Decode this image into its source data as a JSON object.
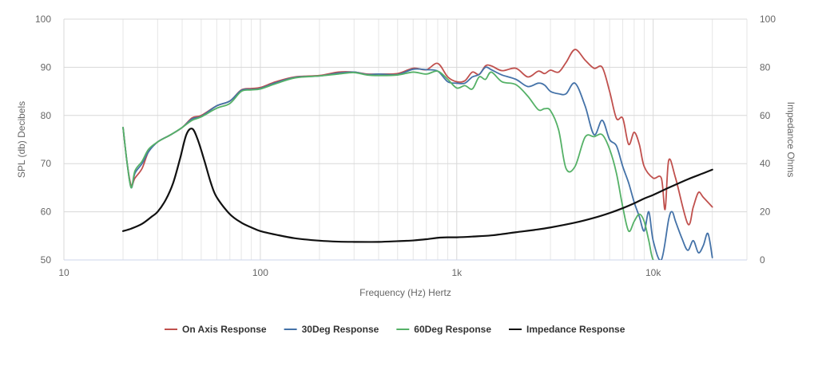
{
  "chart_data": {
    "type": "line",
    "title": "",
    "xlabel": "Frequency (Hz) Hertz",
    "ylabel_left": "SPL (db) Decibels",
    "ylabel_right": "Impedance Ohms",
    "x_scale": "log",
    "xlim": [
      10,
      30000
    ],
    "ylim_left": [
      50,
      100
    ],
    "ylim_right": [
      0,
      100
    ],
    "x_ticks": [
      {
        "value": 10,
        "label": "10"
      },
      {
        "value": 100,
        "label": "100"
      },
      {
        "value": 1000,
        "label": "1k"
      },
      {
        "value": 10000,
        "label": "10k"
      }
    ],
    "y_ticks_left": [
      50,
      60,
      70,
      80,
      90,
      100
    ],
    "y_ticks_right": [
      0,
      20,
      40,
      60,
      80,
      100
    ],
    "grid": "vertical log minor + horizontal major",
    "legend_position": "bottom-center",
    "series": [
      {
        "name": "On Axis Response",
        "color": "#c0504d",
        "axis": "left",
        "points": [
          [
            20,
            77.5
          ],
          [
            21,
            70
          ],
          [
            22,
            65.5
          ],
          [
            23,
            67
          ],
          [
            25,
            69
          ],
          [
            27,
            72.5
          ],
          [
            30,
            74.5
          ],
          [
            35,
            76
          ],
          [
            40,
            77.5
          ],
          [
            45,
            79.5
          ],
          [
            50,
            80
          ],
          [
            60,
            82
          ],
          [
            70,
            83
          ],
          [
            80,
            85.3
          ],
          [
            90,
            85.6
          ],
          [
            100,
            85.8
          ],
          [
            120,
            87
          ],
          [
            150,
            88
          ],
          [
            200,
            88.3
          ],
          [
            250,
            89
          ],
          [
            300,
            89
          ],
          [
            350,
            88.6
          ],
          [
            400,
            88.6
          ],
          [
            500,
            88.7
          ],
          [
            600,
            89.8
          ],
          [
            700,
            89.5
          ],
          [
            800,
            90.8
          ],
          [
            900,
            88
          ],
          [
            1000,
            87
          ],
          [
            1100,
            87.2
          ],
          [
            1200,
            89
          ],
          [
            1300,
            88.5
          ],
          [
            1400,
            90.3
          ],
          [
            1500,
            90.3
          ],
          [
            1700,
            89.3
          ],
          [
            2000,
            89.8
          ],
          [
            2300,
            88
          ],
          [
            2600,
            89.2
          ],
          [
            2800,
            88.7
          ],
          [
            3000,
            89.4
          ],
          [
            3300,
            89
          ],
          [
            3600,
            91
          ],
          [
            4000,
            93.7
          ],
          [
            4500,
            91.5
          ],
          [
            5000,
            89.8
          ],
          [
            5500,
            90
          ],
          [
            6000,
            85
          ],
          [
            6500,
            79.4
          ],
          [
            7000,
            79.4
          ],
          [
            7500,
            74
          ],
          [
            8000,
            76.5
          ],
          [
            8500,
            74
          ],
          [
            9000,
            69.4
          ],
          [
            10000,
            67
          ],
          [
            11000,
            67
          ],
          [
            11500,
            60.5
          ],
          [
            12000,
            70.7
          ],
          [
            13000,
            67
          ],
          [
            15000,
            57.5
          ],
          [
            16000,
            61
          ],
          [
            17000,
            64
          ],
          [
            18000,
            63
          ],
          [
            20000,
            61
          ]
        ]
      },
      {
        "name": "30Deg Response",
        "color": "#4472a8",
        "axis": "left",
        "points": [
          [
            20,
            77.5
          ],
          [
            21,
            70
          ],
          [
            22,
            65
          ],
          [
            23,
            68
          ],
          [
            25,
            70
          ],
          [
            27,
            72.5
          ],
          [
            30,
            74.5
          ],
          [
            35,
            76
          ],
          [
            40,
            77.5
          ],
          [
            45,
            79.3
          ],
          [
            50,
            79.8
          ],
          [
            60,
            82
          ],
          [
            70,
            83
          ],
          [
            80,
            85.2
          ],
          [
            90,
            85.4
          ],
          [
            100,
            85.6
          ],
          [
            120,
            86.8
          ],
          [
            150,
            87.9
          ],
          [
            200,
            88.2
          ],
          [
            250,
            88.8
          ],
          [
            300,
            89
          ],
          [
            350,
            88.5
          ],
          [
            400,
            88.6
          ],
          [
            500,
            88.5
          ],
          [
            600,
            89.6
          ],
          [
            700,
            89.5
          ],
          [
            800,
            89.2
          ],
          [
            900,
            87
          ],
          [
            1000,
            86.7
          ],
          [
            1100,
            86.7
          ],
          [
            1200,
            88
          ],
          [
            1300,
            88.5
          ],
          [
            1400,
            90
          ],
          [
            1500,
            89.5
          ],
          [
            1700,
            88.4
          ],
          [
            2000,
            87.5
          ],
          [
            2300,
            86
          ],
          [
            2600,
            86.7
          ],
          [
            2800,
            86.3
          ],
          [
            3000,
            85
          ],
          [
            3300,
            84.5
          ],
          [
            3600,
            84.5
          ],
          [
            4000,
            86.7
          ],
          [
            4500,
            82
          ],
          [
            5000,
            76
          ],
          [
            5500,
            79
          ],
          [
            6000,
            75
          ],
          [
            6500,
            73.7
          ],
          [
            7000,
            69.4
          ],
          [
            7500,
            66
          ],
          [
            8000,
            62
          ],
          [
            8500,
            59
          ],
          [
            9000,
            56
          ],
          [
            9500,
            60
          ],
          [
            10000,
            54
          ],
          [
            11000,
            50
          ],
          [
            12000,
            58.5
          ],
          [
            12500,
            60
          ],
          [
            13000,
            58
          ],
          [
            14000,
            54.5
          ],
          [
            15000,
            52
          ],
          [
            16000,
            54
          ],
          [
            17000,
            51.5
          ],
          [
            18000,
            53
          ],
          [
            19000,
            55.5
          ],
          [
            20000,
            50.5
          ]
        ]
      },
      {
        "name": "60Deg Response",
        "color": "#55b167",
        "axis": "left",
        "points": [
          [
            20,
            77.5
          ],
          [
            21,
            70
          ],
          [
            22,
            65
          ],
          [
            23,
            68.5
          ],
          [
            25,
            70.5
          ],
          [
            27,
            73
          ],
          [
            30,
            74.5
          ],
          [
            35,
            76
          ],
          [
            40,
            77.5
          ],
          [
            45,
            79
          ],
          [
            50,
            79.7
          ],
          [
            60,
            81.5
          ],
          [
            70,
            82.5
          ],
          [
            80,
            85
          ],
          [
            90,
            85.3
          ],
          [
            100,
            85.5
          ],
          [
            120,
            86.6
          ],
          [
            150,
            87.8
          ],
          [
            200,
            88.2
          ],
          [
            250,
            88.6
          ],
          [
            300,
            88.9
          ],
          [
            350,
            88.4
          ],
          [
            400,
            88.3
          ],
          [
            500,
            88.4
          ],
          [
            600,
            89
          ],
          [
            700,
            88.6
          ],
          [
            800,
            89.2
          ],
          [
            900,
            87.5
          ],
          [
            1000,
            85.7
          ],
          [
            1100,
            86.2
          ],
          [
            1200,
            85.5
          ],
          [
            1300,
            88
          ],
          [
            1400,
            87.5
          ],
          [
            1500,
            89
          ],
          [
            1700,
            87
          ],
          [
            2000,
            86.4
          ],
          [
            2300,
            84
          ],
          [
            2600,
            81.2
          ],
          [
            2800,
            81.4
          ],
          [
            3000,
            81
          ],
          [
            3300,
            77
          ],
          [
            3600,
            69
          ],
          [
            4000,
            69.4
          ],
          [
            4500,
            75.5
          ],
          [
            5000,
            75.6
          ],
          [
            5500,
            76
          ],
          [
            6000,
            73
          ],
          [
            6500,
            68
          ],
          [
            7000,
            61
          ],
          [
            7500,
            56
          ],
          [
            8000,
            58
          ],
          [
            8500,
            59.5
          ],
          [
            9000,
            58
          ],
          [
            9500,
            54
          ],
          [
            10000,
            50
          ],
          [
            11000,
            49
          ]
        ]
      },
      {
        "name": "Impedance Response",
        "color": "#111111",
        "axis": "right",
        "points": [
          [
            20,
            12
          ],
          [
            22,
            13
          ],
          [
            25,
            15
          ],
          [
            28,
            18
          ],
          [
            30,
            20
          ],
          [
            33,
            25
          ],
          [
            36,
            32
          ],
          [
            39,
            42
          ],
          [
            42,
            52
          ],
          [
            45,
            54.5
          ],
          [
            48,
            50
          ],
          [
            52,
            41
          ],
          [
            56,
            32
          ],
          [
            60,
            26
          ],
          [
            70,
            19
          ],
          [
            80,
            15.5
          ],
          [
            90,
            13.5
          ],
          [
            100,
            12
          ],
          [
            120,
            10.5
          ],
          [
            150,
            9
          ],
          [
            200,
            8
          ],
          [
            250,
            7.6
          ],
          [
            300,
            7.5
          ],
          [
            400,
            7.5
          ],
          [
            500,
            7.8
          ],
          [
            600,
            8.1
          ],
          [
            700,
            8.6
          ],
          [
            800,
            9.2
          ],
          [
            900,
            9.4
          ],
          [
            1000,
            9.4
          ],
          [
            1200,
            9.7
          ],
          [
            1500,
            10.2
          ],
          [
            2000,
            11.5
          ],
          [
            2500,
            12.5
          ],
          [
            3000,
            13.5
          ],
          [
            4000,
            15.5
          ],
          [
            5000,
            17.5
          ],
          [
            6000,
            19.5
          ],
          [
            7000,
            21.5
          ],
          [
            8000,
            23.5
          ],
          [
            9000,
            25.5
          ],
          [
            10000,
            27
          ],
          [
            12000,
            30
          ],
          [
            15000,
            33.5
          ],
          [
            18000,
            36
          ],
          [
            20000,
            37.5
          ]
        ]
      }
    ]
  }
}
